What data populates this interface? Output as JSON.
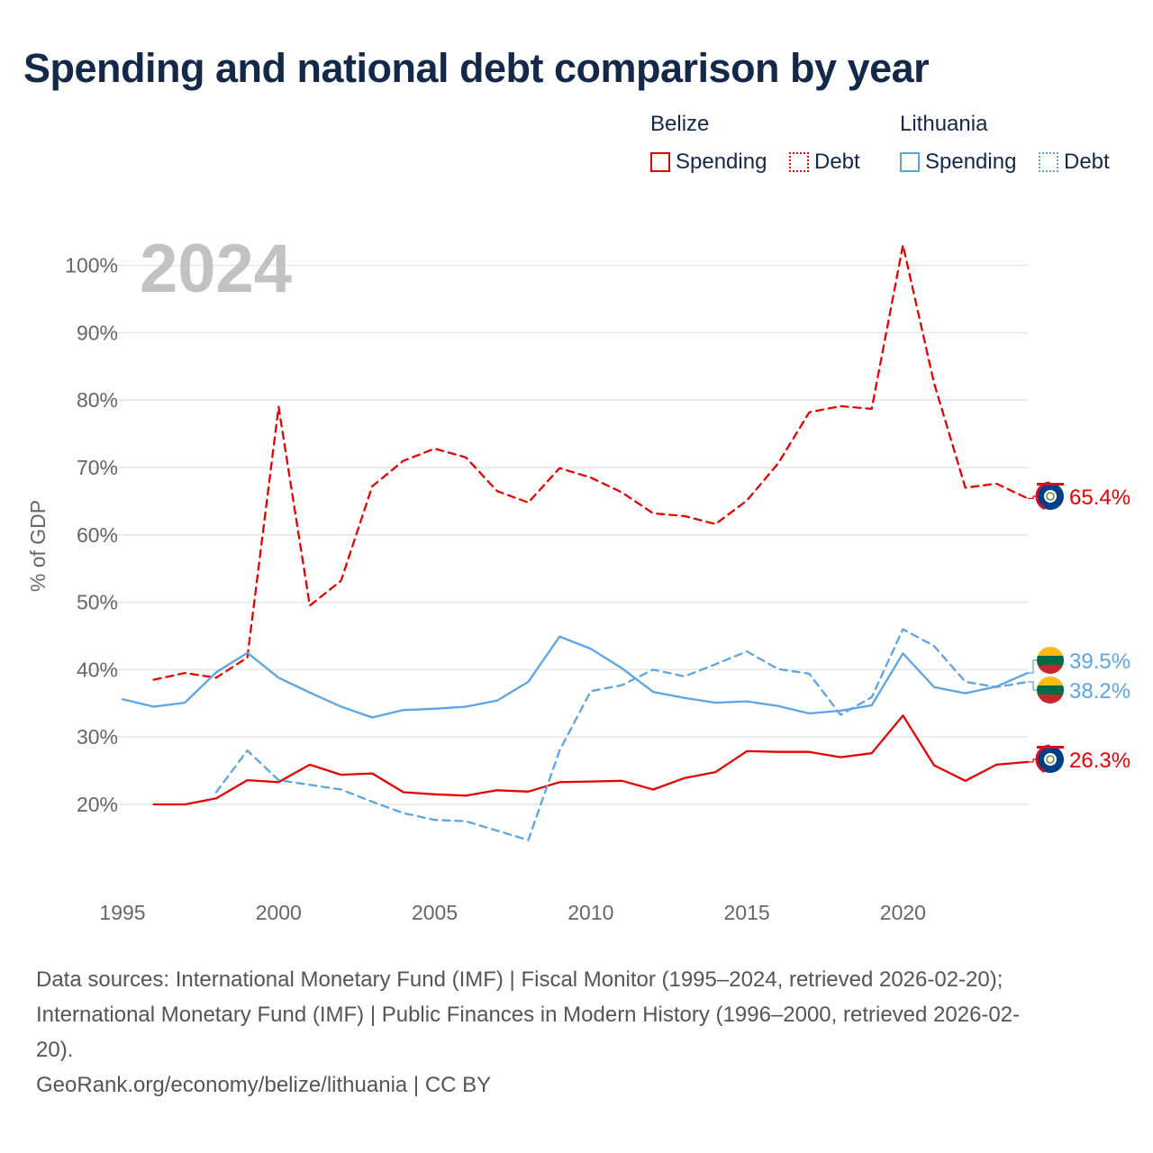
{
  "title": "Spending and national debt comparison by year",
  "legend": {
    "belize": {
      "label": "Belize",
      "spending": "Spending",
      "debt": "Debt"
    },
    "lithuania": {
      "label": "Lithuania",
      "spending": "Spending",
      "debt": "Debt"
    }
  },
  "colors": {
    "belize": "#e60000",
    "lithuania": "#5ba4e6",
    "grid": "#e6e6e6",
    "axis_text": "#666666",
    "year_watermark": "#c2c2c2",
    "title": "#14294a"
  },
  "chart_data": {
    "type": "line",
    "year_label": "2024",
    "ylabel": "% of GDP",
    "xlim": [
      1995,
      2024
    ],
    "ylim": [
      10,
      105
    ],
    "y_ticks": [
      20,
      30,
      40,
      50,
      60,
      70,
      80,
      90,
      100
    ],
    "y_tick_labels": [
      "20%",
      "30%",
      "40%",
      "50%",
      "60%",
      "70%",
      "80%",
      "90%",
      "100%"
    ],
    "x_ticks": [
      1995,
      2000,
      2005,
      2010,
      2015,
      2020
    ],
    "x_tick_labels": [
      "1995",
      "2000",
      "2005",
      "2010",
      "2015",
      "2020"
    ],
    "series": [
      {
        "name": "Belize Debt",
        "country": "belize",
        "style": "dashed",
        "end_label": "65.4%",
        "x": [
          1996,
          1997,
          1998,
          1999,
          2000,
          2001,
          2002,
          2003,
          2004,
          2005,
          2006,
          2007,
          2008,
          2009,
          2010,
          2011,
          2012,
          2013,
          2014,
          2015,
          2016,
          2017,
          2018,
          2019,
          2020,
          2021,
          2022,
          2023,
          2024
        ],
        "values": [
          38.5,
          39.5,
          38.8,
          41.8,
          79.0,
          49.5,
          53.2,
          67.2,
          71.0,
          72.8,
          71.5,
          66.5,
          64.8,
          69.9,
          68.5,
          66.3,
          63.2,
          62.8,
          61.6,
          65.1,
          70.6,
          78.2,
          79.1,
          78.7,
          103.0,
          82.5,
          67.0,
          67.6,
          65.4
        ]
      },
      {
        "name": "Belize Spending",
        "country": "belize",
        "style": "solid",
        "end_label": "26.3%",
        "x": [
          1996,
          1997,
          1998,
          1999,
          2000,
          2001,
          2002,
          2003,
          2004,
          2005,
          2006,
          2007,
          2008,
          2009,
          2010,
          2011,
          2012,
          2013,
          2014,
          2015,
          2016,
          2017,
          2018,
          2019,
          2020,
          2021,
          2022,
          2023,
          2024
        ],
        "values": [
          20.0,
          20.0,
          20.9,
          23.6,
          23.3,
          25.9,
          24.4,
          24.6,
          21.8,
          21.5,
          21.3,
          22.1,
          21.9,
          23.3,
          23.4,
          23.5,
          22.2,
          23.9,
          24.8,
          27.9,
          27.8,
          27.8,
          27.0,
          27.6,
          33.2,
          25.8,
          23.5,
          25.9,
          26.3
        ]
      },
      {
        "name": "Lithuania Spending",
        "country": "lithuania",
        "style": "solid",
        "end_label": "39.5%",
        "x": [
          1995,
          1996,
          1997,
          1998,
          1999,
          2000,
          2001,
          2002,
          2003,
          2004,
          2005,
          2006,
          2007,
          2008,
          2009,
          2010,
          2011,
          2012,
          2013,
          2014,
          2015,
          2016,
          2017,
          2018,
          2019,
          2020,
          2021,
          2022,
          2023,
          2024
        ],
        "values": [
          35.6,
          34.5,
          35.1,
          39.6,
          42.5,
          38.8,
          36.6,
          34.5,
          32.9,
          34.0,
          34.2,
          34.5,
          35.4,
          38.2,
          44.9,
          43.1,
          40.2,
          36.7,
          35.8,
          35.1,
          35.3,
          34.6,
          33.5,
          33.9,
          34.7,
          42.4,
          37.4,
          36.5,
          37.5,
          39.5
        ]
      },
      {
        "name": "Lithuania Debt",
        "country": "lithuania",
        "style": "dashed",
        "end_label": "38.2%",
        "x": [
          1998,
          1999,
          2000,
          2001,
          2002,
          2003,
          2004,
          2005,
          2006,
          2007,
          2008,
          2009,
          2010,
          2011,
          2012,
          2013,
          2014,
          2015,
          2016,
          2017,
          2018,
          2019,
          2020,
          2021,
          2022,
          2023,
          2024
        ],
        "values": [
          21.8,
          28.0,
          23.6,
          22.9,
          22.2,
          20.4,
          18.7,
          17.7,
          17.5,
          16.1,
          14.7,
          28.0,
          36.8,
          37.7,
          40.0,
          39.0,
          40.8,
          42.7,
          40.1,
          39.4,
          33.3,
          35.9,
          46.0,
          43.5,
          38.2,
          37.4,
          38.2
        ]
      }
    ]
  },
  "sources": [
    "Data sources: International Monetary Fund (IMF) | Fiscal Monitor (1995–2024, retrieved 2026-02-20);",
    "International Monetary Fund (IMF) | Public Finances in Modern History (1996–2000, retrieved 2026-02-",
    "20).",
    "GeoRank.org/economy/belize/lithuania | CC BY"
  ]
}
